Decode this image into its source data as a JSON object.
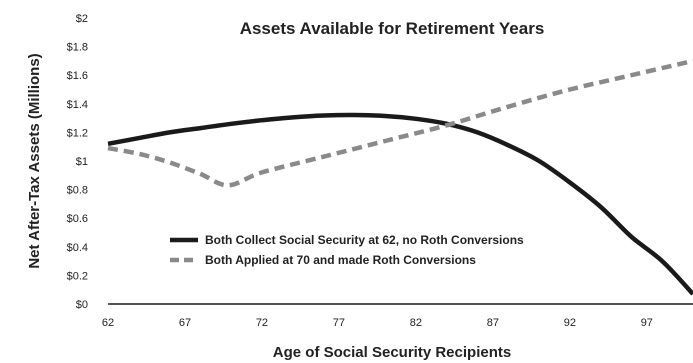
{
  "chart_data": {
    "type": "line",
    "title": "Assets Available for Retirement Years",
    "xlabel": "Age of Social Security Recipients",
    "ylabel": "Net After-Tax Assets (Millions)",
    "xlim": [
      62,
      100
    ],
    "ylim": [
      0,
      2
    ],
    "x_ticks": [
      62,
      67,
      72,
      77,
      82,
      87,
      92,
      97
    ],
    "x_tick_labels": [
      "62",
      "67",
      "72",
      "77",
      "82",
      "87",
      "92",
      "97"
    ],
    "y_ticks": [
      0,
      0.2,
      0.4,
      0.6,
      0.8,
      1,
      1.2,
      1.4,
      1.6,
      1.8,
      2
    ],
    "y_tick_labels": [
      "$0",
      "$0.2",
      "$0.4",
      "$0.6",
      "$0.8",
      "$1",
      "$1.2",
      "$1.4",
      "$1.6",
      "$1.8",
      "$2"
    ],
    "grid": false,
    "legend_position": "lower-left",
    "series": [
      {
        "name": "Both Collect Social Security at 62, no Roth Conversions",
        "style": "solid",
        "color": "#1a1a1a",
        "x": [
          62,
          64,
          66,
          68,
          70,
          72,
          74,
          76,
          78,
          80,
          82,
          84,
          86,
          88,
          90,
          92,
          94,
          96,
          98,
          100
        ],
        "y": [
          1.12,
          1.16,
          1.2,
          1.23,
          1.26,
          1.285,
          1.305,
          1.318,
          1.322,
          1.315,
          1.295,
          1.26,
          1.2,
          1.11,
          1.0,
          0.85,
          0.68,
          0.47,
          0.3,
          0.07
        ]
      },
      {
        "name": "Both Applied at 70 and made Roth Conversions",
        "style": "dashed",
        "color": "#8a8a8a",
        "x": [
          62,
          64,
          66,
          68,
          69.8,
          72,
          76,
          80,
          84,
          88,
          92,
          96,
          100
        ],
        "y": [
          1.09,
          1.05,
          0.99,
          0.91,
          0.83,
          0.92,
          1.03,
          1.14,
          1.25,
          1.38,
          1.5,
          1.6,
          1.7
        ]
      }
    ]
  }
}
